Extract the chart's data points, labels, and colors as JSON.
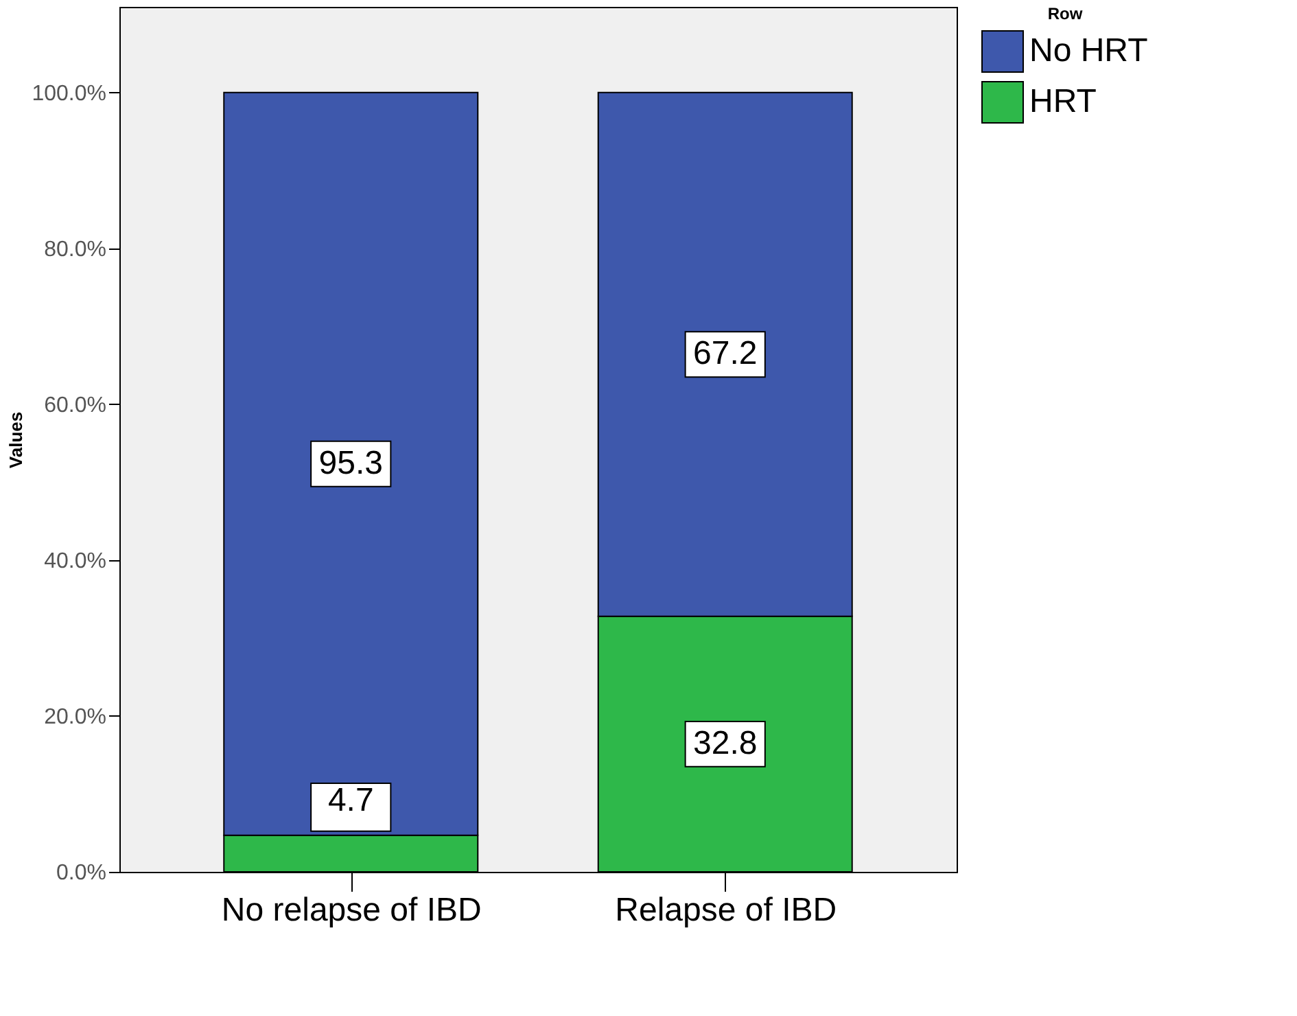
{
  "chart_data": {
    "type": "bar",
    "stacked": true,
    "ylabel": "Values",
    "legend_title": "Row",
    "legend": "top right",
    "categories": [
      "No relapse of IBD",
      "Relapse of IBD"
    ],
    "series": [
      {
        "name": "HRT",
        "color": "#2eb84a",
        "values": [
          4.7,
          32.8
        ]
      },
      {
        "name": "No HRT",
        "color": "#3e58ac",
        "values": [
          95.3,
          67.2
        ]
      }
    ],
    "data_labels": true,
    "ylim": [
      0,
      111
    ],
    "yticks": [
      {
        "value": 0,
        "label": "0.0%"
      },
      {
        "value": 20,
        "label": "20.0%"
      },
      {
        "value": 40,
        "label": "40.0%"
      },
      {
        "value": 60,
        "label": "60.0%"
      },
      {
        "value": 80,
        "label": "80.0%"
      },
      {
        "value": 100,
        "label": "100.0%"
      }
    ],
    "grid": false
  }
}
